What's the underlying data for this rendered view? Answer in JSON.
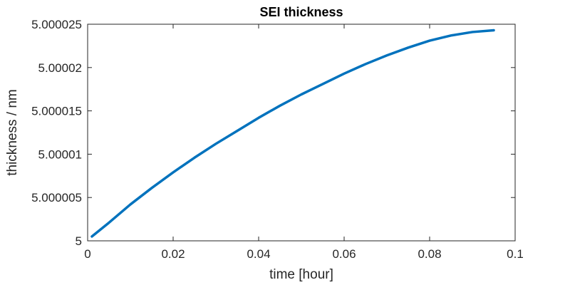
{
  "chart_data": {
    "type": "line",
    "title": "SEI thickness",
    "xlabel": "time [hour]",
    "ylabel": "thickness / nm",
    "xlim": [
      0,
      0.1
    ],
    "ylim": [
      5,
      5.000025
    ],
    "x_ticks": [
      0,
      0.02,
      0.04,
      0.06,
      0.08,
      0.1
    ],
    "x_tick_labels": [
      "0",
      "0.02",
      "0.04",
      "0.06",
      "0.08",
      "0.1"
    ],
    "y_ticks": [
      5,
      5.000005,
      5.00001,
      5.000015,
      5.00002,
      5.000025
    ],
    "y_tick_labels": [
      "5",
      "5.000005",
      "5.00001",
      "5.000015",
      "5.00002",
      "5.000025"
    ],
    "grid": false,
    "line_color": "#0072BD",
    "series": [
      {
        "x": [
          0.001,
          0.005,
          0.01,
          0.015,
          0.02,
          0.025,
          0.03,
          0.035,
          0.04,
          0.045,
          0.05,
          0.055,
          0.06,
          0.065,
          0.07,
          0.075,
          0.08,
          0.085,
          0.09,
          0.095
        ],
        "values": [
          5.0000005,
          5.0000021,
          5.0000042,
          5.0000061,
          5.0000079,
          5.0000096,
          5.0000112,
          5.0000127,
          5.0000142,
          5.0000156,
          5.0000169,
          5.0000181,
          5.0000193,
          5.0000204,
          5.0000214,
          5.0000223,
          5.0000231,
          5.0000237,
          5.0000241,
          5.0000243
        ]
      }
    ]
  }
}
